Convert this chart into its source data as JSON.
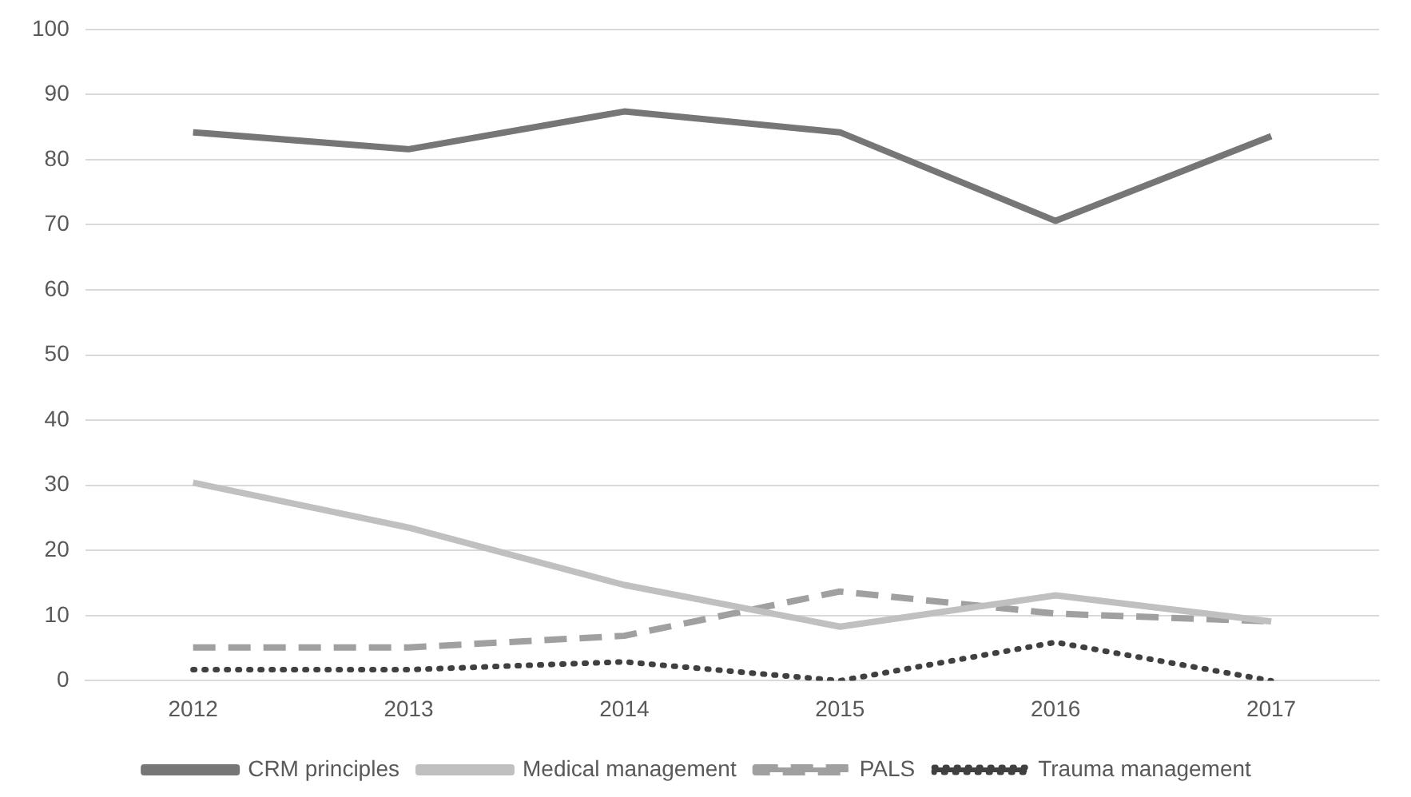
{
  "chart_data": {
    "type": "line",
    "categories": [
      "2012",
      "2013",
      "2014",
      "2015",
      "2016",
      "2017"
    ],
    "series": [
      {
        "name": "CRM principles",
        "color": "#767676",
        "line_style": "solid",
        "values": [
          84.2,
          81.6,
          87.4,
          84.2,
          70.6,
          83.6
        ]
      },
      {
        "name": "Medical management",
        "color": "#c0c0c0",
        "line_style": "solid",
        "values": [
          30.4,
          23.5,
          14.7,
          8.3,
          13.1,
          9.1
        ]
      },
      {
        "name": "PALS",
        "color": "#a0a0a0",
        "line_style": "dashed",
        "values": [
          5.1,
          5.1,
          6.9,
          13.7,
          10.3,
          9.1
        ]
      },
      {
        "name": "Trauma management",
        "color": "#404040",
        "line_style": "dotted",
        "values": [
          1.7,
          1.7,
          2.9,
          0,
          5.9,
          0
        ]
      }
    ],
    "ylim": [
      0,
      100
    ],
    "yticks": [
      0,
      10,
      20,
      30,
      40,
      50,
      60,
      70,
      80,
      90,
      100
    ],
    "grid": "y",
    "legend": "bottom",
    "marker": "none"
  }
}
